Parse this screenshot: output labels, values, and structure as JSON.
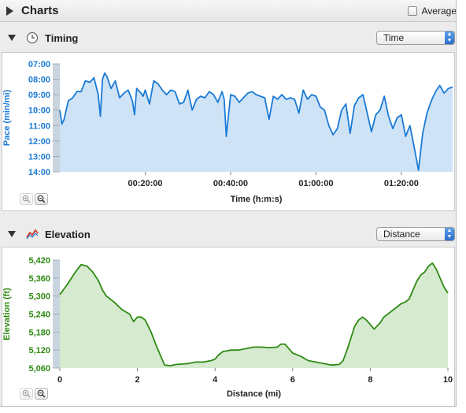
{
  "header": {
    "title": "Charts",
    "average_label": "Average"
  },
  "timing": {
    "title": "Timing",
    "select_value": "Time",
    "icon": "clock-icon",
    "color": "#1a7ad6",
    "fill": "#cfe3f7",
    "chart_data": {
      "type": "area",
      "title": "",
      "ylabel": "Pace (min/mi)",
      "xlabel": "Time (h:m:s)",
      "y_ticks": [
        "07:00",
        "08:00",
        "09:00",
        "10:00",
        "11:00",
        "12:00",
        "13:00",
        "14:00"
      ],
      "x_ticks": [
        "00:20:00",
        "00:40:00",
        "01:00:00",
        "01:20:00"
      ],
      "x_tick_values": [
        20,
        40,
        60,
        80
      ],
      "xlim": [
        0,
        92
      ],
      "ylim_min_per_mile": [
        7,
        14
      ],
      "inverted_y": true,
      "series": [
        {
          "x": [
            0,
            0.5,
            1,
            2,
            3,
            4,
            5,
            6,
            7,
            8,
            9,
            9.5,
            10,
            10.5,
            11,
            12,
            13,
            14,
            15,
            16,
            17,
            17.5,
            18,
            19,
            19.5,
            20,
            21,
            22,
            23,
            24,
            25,
            26,
            27,
            28,
            29,
            30,
            31,
            32,
            33,
            34,
            35,
            36,
            37,
            38,
            38.5,
            39,
            40,
            41,
            42,
            43,
            44,
            45,
            46,
            47,
            48,
            49,
            50,
            51,
            52,
            53,
            54,
            55,
            56,
            57,
            58,
            59,
            60,
            61,
            62,
            63,
            64,
            65,
            66,
            67,
            68,
            69,
            70,
            71,
            72,
            73,
            74,
            75,
            76,
            77,
            78,
            79,
            80,
            81,
            82,
            83,
            84,
            85,
            86,
            87,
            88,
            89,
            90,
            91,
            92
          ],
          "y": [
            10.0,
            10.9,
            10.6,
            9.4,
            9.2,
            8.8,
            8.8,
            8.1,
            8.2,
            7.9,
            9.0,
            10.4,
            8.0,
            7.6,
            7.8,
            8.6,
            8.1,
            9.2,
            8.9,
            8.7,
            9.4,
            10.3,
            8.6,
            8.9,
            9.1,
            8.7,
            9.6,
            8.1,
            8.3,
            8.7,
            9.0,
            8.7,
            8.8,
            9.6,
            9.5,
            8.7,
            10.0,
            9.3,
            9.1,
            9.2,
            8.8,
            9.0,
            9.5,
            8.8,
            9.3,
            11.7,
            9.0,
            9.1,
            9.5,
            9.2,
            8.9,
            8.8,
            9.0,
            9.1,
            9.2,
            10.6,
            9.1,
            9.3,
            9.0,
            9.3,
            9.2,
            9.3,
            10.2,
            8.7,
            9.3,
            9.0,
            9.1,
            9.8,
            10.0,
            11.0,
            11.6,
            11.2,
            10.0,
            9.6,
            11.5,
            9.7,
            9.2,
            9.0,
            10.2,
            11.4,
            10.3,
            10.0,
            9.1,
            10.4,
            11.2,
            10.5,
            10.3,
            11.7,
            11.0,
            12.4,
            13.9,
            11.5,
            10.2,
            9.4,
            8.8,
            8.4,
            8.9,
            8.6,
            8.5
          ]
        }
      ]
    },
    "zoom": [
      "zoom-in-icon",
      "zoom-out-icon"
    ]
  },
  "elevation": {
    "title": "Elevation",
    "select_value": "Distance",
    "icon": "elevation-chart-icon",
    "color": "#2e8a12",
    "fill": "#d6ead0",
    "chart_data": {
      "type": "area",
      "title": "",
      "ylabel": "Elevation (ft)",
      "xlabel": "Distance (mi)",
      "y_ticks": [
        "5,420",
        "5,360",
        "5,300",
        "5,240",
        "5,180",
        "5,120",
        "5,060"
      ],
      "y_tick_values": [
        5420,
        5360,
        5300,
        5240,
        5180,
        5120,
        5060
      ],
      "x_ticks": [
        "0",
        "2",
        "4",
        "6",
        "8",
        "10"
      ],
      "x_tick_values": [
        0,
        2,
        4,
        6,
        8,
        10
      ],
      "xlim": [
        0,
        10
      ],
      "ylim": [
        5060,
        5420
      ],
      "series": [
        {
          "x": [
            0,
            0.2,
            0.4,
            0.55,
            0.7,
            0.85,
            1.0,
            1.1,
            1.2,
            1.4,
            1.6,
            1.8,
            1.9,
            2.0,
            2.1,
            2.2,
            2.35,
            2.5,
            2.7,
            2.85,
            3.0,
            3.3,
            3.5,
            3.7,
            3.9,
            4.0,
            4.1,
            4.2,
            4.4,
            4.6,
            4.8,
            5.0,
            5.2,
            5.4,
            5.6,
            5.7,
            5.8,
            5.9,
            6.0,
            6.2,
            6.4,
            6.6,
            6.8,
            7.0,
            7.2,
            7.3,
            7.4,
            7.5,
            7.6,
            7.7,
            7.8,
            7.9,
            8.0,
            8.1,
            8.25,
            8.35,
            8.5,
            8.6,
            8.7,
            8.8,
            8.9,
            9.0,
            9.1,
            9.2,
            9.3,
            9.4,
            9.5,
            9.6,
            9.7,
            9.8,
            9.9,
            10.0
          ],
          "y": [
            5305,
            5340,
            5380,
            5405,
            5400,
            5380,
            5350,
            5320,
            5300,
            5280,
            5255,
            5240,
            5215,
            5230,
            5230,
            5220,
            5180,
            5130,
            5070,
            5068,
            5072,
            5075,
            5080,
            5080,
            5085,
            5090,
            5105,
            5115,
            5120,
            5120,
            5125,
            5130,
            5130,
            5128,
            5130,
            5140,
            5140,
            5125,
            5110,
            5100,
            5085,
            5080,
            5075,
            5070,
            5072,
            5085,
            5120,
            5160,
            5200,
            5220,
            5230,
            5220,
            5205,
            5190,
            5210,
            5230,
            5245,
            5255,
            5265,
            5275,
            5280,
            5290,
            5320,
            5350,
            5370,
            5380,
            5400,
            5410,
            5390,
            5360,
            5330,
            5310
          ]
        }
      ]
    },
    "zoom": [
      "zoom-in-icon",
      "zoom-out-icon"
    ]
  }
}
